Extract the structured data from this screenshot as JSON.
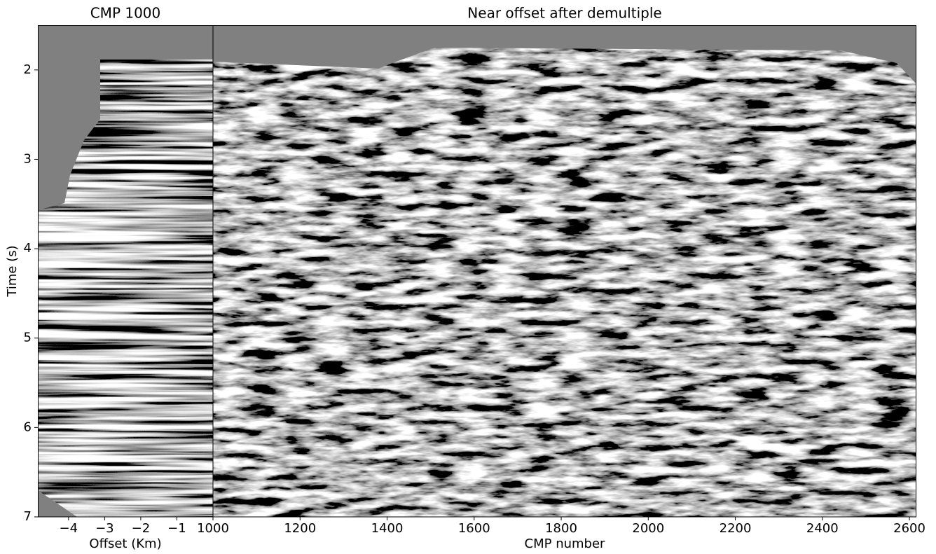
{
  "chart_data": [
    {
      "type": "image",
      "title": "CMP 1000",
      "x_label": "Offset (Km)",
      "y_label": "Time (s)",
      "xlim": [
        -4.85,
        0
      ],
      "xticks": [
        {
          "value": -4,
          "label": "−4"
        },
        {
          "value": -3,
          "label": "−3"
        },
        {
          "value": -2,
          "label": "−2"
        },
        {
          "value": -1,
          "label": "−1"
        }
      ],
      "ylim": [
        7,
        1.5
      ],
      "yticks": [
        2,
        3,
        4,
        5,
        6,
        7
      ]
    },
    {
      "type": "image",
      "title": "Near offset after demultiple",
      "x_label": "CMP number",
      "xlim": [
        1000,
        2616
      ],
      "xticks": [
        1000,
        1200,
        1400,
        1600,
        1800,
        2000,
        2200,
        2400,
        2600
      ]
    }
  ]
}
